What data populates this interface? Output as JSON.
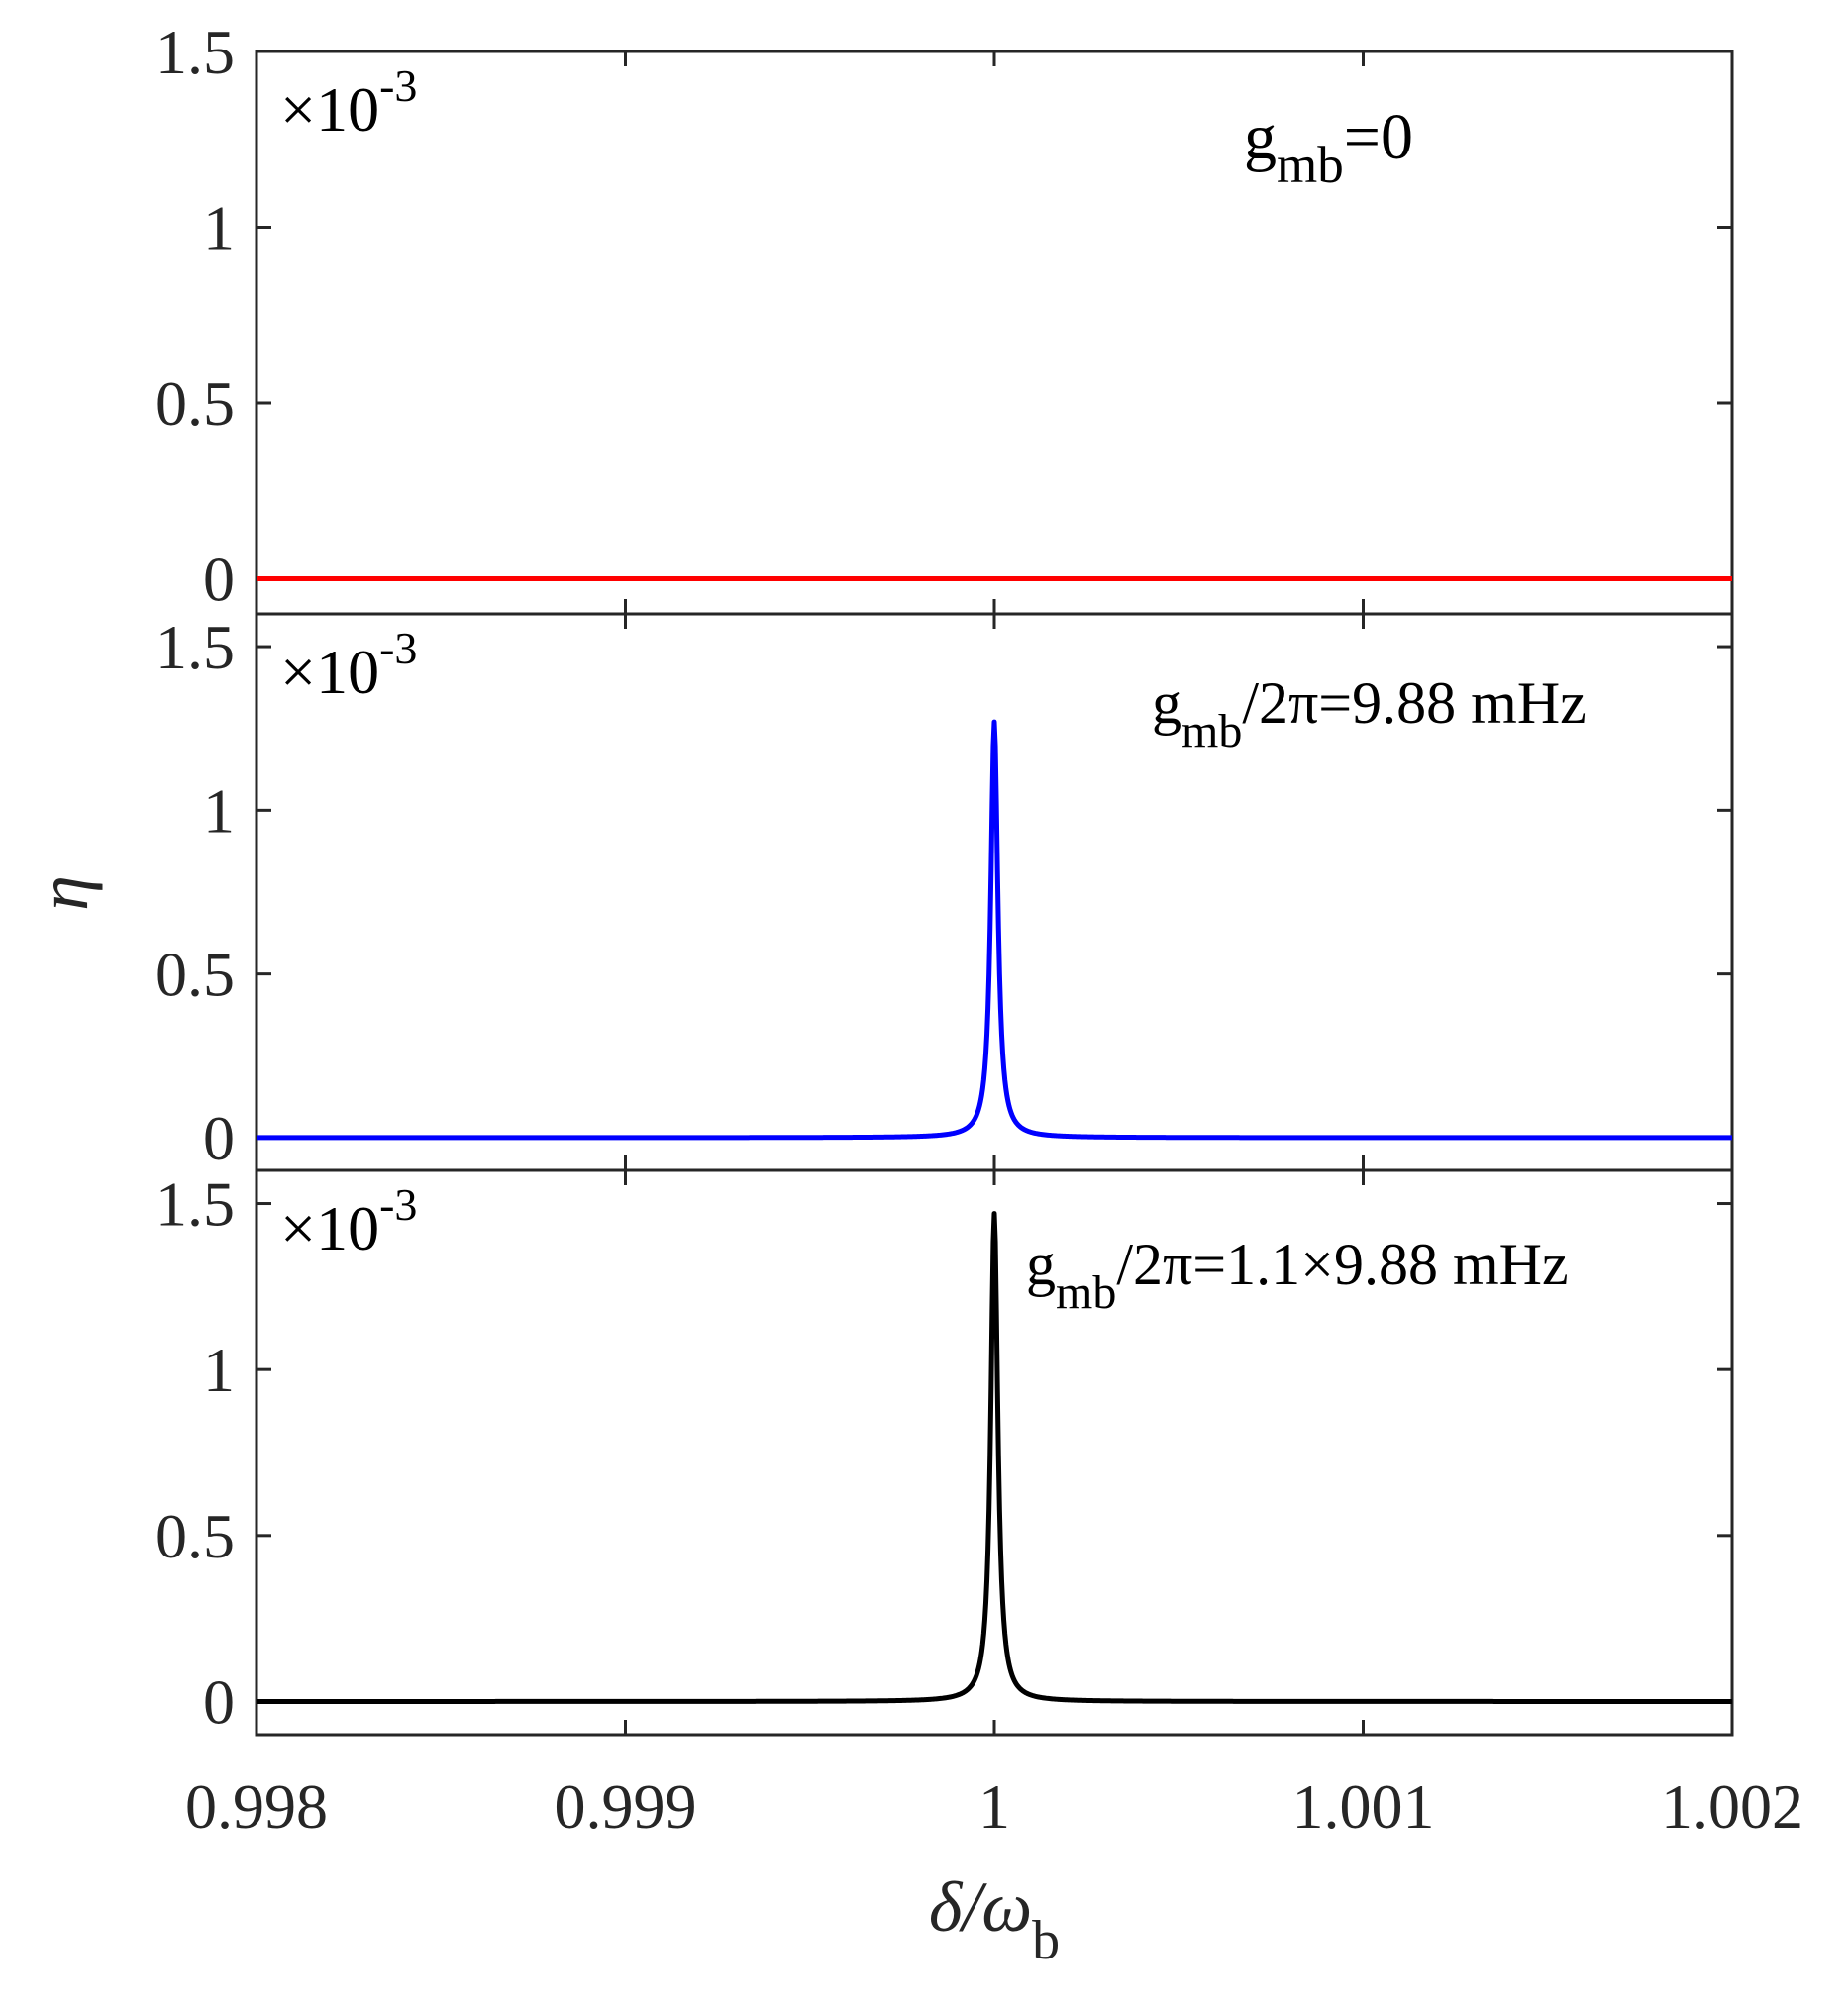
{
  "chart_data": {
    "type": "line",
    "xlabel": {
      "main": "δ/ω",
      "sub": "b"
    },
    "ylabel": "η",
    "xlim": [
      0.998,
      1.002
    ],
    "xticks": [
      0.998,
      0.999,
      1,
      1.001,
      1.002
    ],
    "xtick_labels": [
      "0.998",
      "0.999",
      "1",
      "1.001",
      "1.002"
    ],
    "panels": [
      {
        "id": "top",
        "ylim": [
          -0.1,
          1.5
        ],
        "yticks": [
          0,
          0.5,
          1,
          1.5
        ],
        "ytick_labels": [
          "0",
          "0.5",
          "1",
          "1.5"
        ],
        "exponent": {
          "times": "×10",
          "power": "-3"
        },
        "annotation": {
          "g": "g",
          "sub": "mb",
          "rest": "=0"
        },
        "series": {
          "name": "g_mb=0",
          "color": "#ff0000",
          "peak": 0,
          "halfwidth": 1.15e-05
        }
      },
      {
        "id": "middle",
        "ylim": [
          -0.1,
          1.6
        ],
        "yticks": [
          0,
          0.5,
          1,
          1.5
        ],
        "ytick_labels": [
          "0",
          "0.5",
          "1",
          "1.5"
        ],
        "exponent": {
          "times": "×10",
          "power": "-3"
        },
        "annotation": {
          "g": "g",
          "sub": "mb",
          "rest": "/2π=9.88 mHz"
        },
        "series": {
          "name": "g_mb/2π=9.88 mHz",
          "color": "#0000ff",
          "peak": 1.27,
          "halfwidth": 1.15e-05
        }
      },
      {
        "id": "bottom",
        "ylim": [
          -0.1,
          1.6
        ],
        "yticks": [
          0,
          0.5,
          1,
          1.5
        ],
        "ytick_labels": [
          "0",
          "0.5",
          "1",
          "1.5"
        ],
        "exponent": {
          "times": "×10",
          "power": "-3"
        },
        "annotation": {
          "g": "g",
          "sub": "mb",
          "rest": "/2π=1.1×9.88 mHz"
        },
        "series": {
          "name": "g_mb/2π=1.1×9.88 mHz",
          "color": "#000000",
          "peak": 1.47,
          "halfwidth": 1.15e-05
        }
      }
    ]
  }
}
